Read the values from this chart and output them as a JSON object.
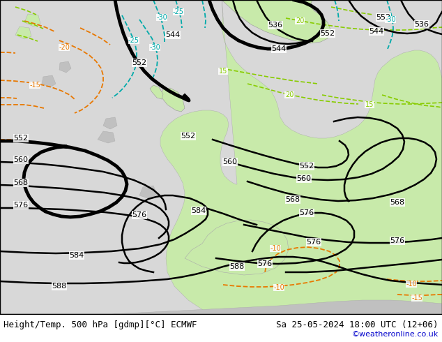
{
  "title_left": "Height/Temp. 500 hPa [gdmp][°C] ECMWF",
  "title_right": "Sa 25-05-2024 18:00 UTC (12+06)",
  "credit": "©weatheronline.co.uk",
  "bg_color": "#ffffff",
  "ocean_color": "#d8d8d8",
  "land_color": "#c8eaaa",
  "land_color2": "#d8f0b8",
  "gray_land_color": "#c0c0c0",
  "label_fontsize": 8,
  "title_fontsize": 9,
  "credit_color": "#0000cc",
  "figsize": [
    6.34,
    4.9
  ],
  "dpi": 100
}
